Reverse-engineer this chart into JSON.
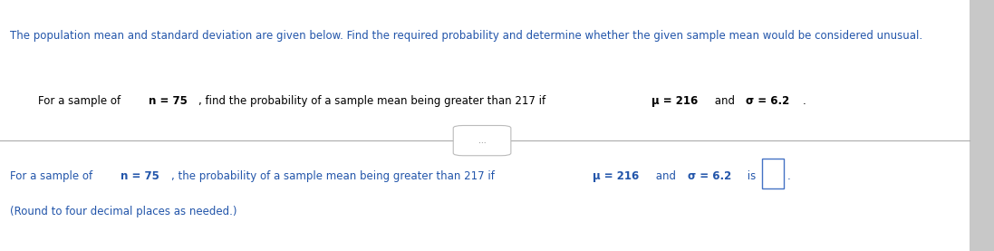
{
  "bg_color": "#f2f2f2",
  "main_bg": "#ffffff",
  "line1_text": "The population mean and standard deviation are given below. Find the required probability and determine whether the given sample mean would be considered unusual.",
  "line1_color": "#2255aa",
  "line2_segments": [
    {
      "text": "For a sample of ",
      "bold": false
    },
    {
      "text": "n = 75",
      "bold": true
    },
    {
      "text": ", find the probability of a sample mean being greater than 217 if ",
      "bold": false
    },
    {
      "text": "μ = 216",
      "bold": true
    },
    {
      "text": " and ",
      "bold": false
    },
    {
      "text": "σ = 6.2",
      "bold": true
    },
    {
      "text": ".",
      "bold": false
    }
  ],
  "line2_color": "#000000",
  "separator_color": "#aaaaaa",
  "dot_button_text": "...",
  "line3_segments": [
    {
      "text": "For a sample of ",
      "bold": false
    },
    {
      "text": "n = 75",
      "bold": true
    },
    {
      "text": ", the probability of a sample mean being greater than 217 if ",
      "bold": false
    },
    {
      "text": "μ = 216",
      "bold": true
    },
    {
      "text": " and ",
      "bold": false
    },
    {
      "text": "σ = 6.2",
      "bold": true
    },
    {
      "text": " is",
      "bold": false
    }
  ],
  "line3_color": "#2255aa",
  "line4_text": "(Round to four decimal places as needed.)",
  "line4_color": "#2255aa",
  "font_size": 8.5,
  "right_bar_color": "#c8c8c8",
  "right_bar_width": 0.025
}
